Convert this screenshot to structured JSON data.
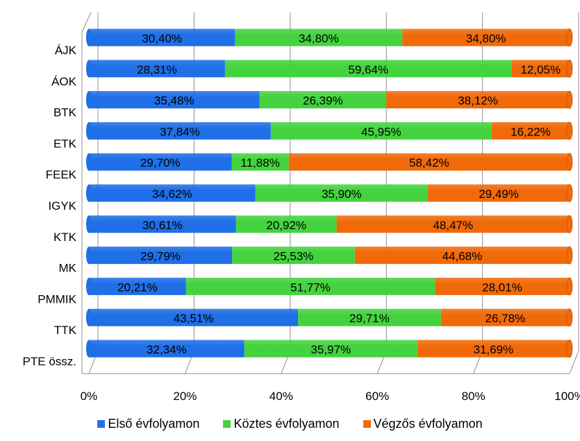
{
  "chart_data": {
    "type": "bar",
    "orientation": "horizontal",
    "stacked": "percent",
    "categories": [
      "ÁJK",
      "ÁOK",
      "BTK",
      "ETK",
      "FEEK",
      "IGYK",
      "KTK",
      "MK",
      "PMMIK",
      "TTK",
      "PTE össz."
    ],
    "series": [
      {
        "name": "Első évfolyamon",
        "color": "#1f6fe6",
        "values": [
          30.4,
          28.31,
          35.48,
          37.84,
          29.7,
          34.62,
          30.61,
          29.79,
          20.21,
          43.51,
          32.34
        ],
        "labels": [
          "30,40%",
          "28,31%",
          "35,48%",
          "37,84%",
          "29,70%",
          "34,62%",
          "30,61%",
          "29,79%",
          "20,21%",
          "43,51%",
          "32,34%"
        ]
      },
      {
        "name": "Köztes évfolyamon",
        "color": "#44d33f",
        "values": [
          34.8,
          59.64,
          26.39,
          45.95,
          11.88,
          35.9,
          20.92,
          25.53,
          51.77,
          29.71,
          35.97
        ],
        "labels": [
          "34,80%",
          "59,64%",
          "26,39%",
          "45,95%",
          "11,88%",
          "35,90%",
          "20,92%",
          "25,53%",
          "51,77%",
          "29,71%",
          "35,97%"
        ]
      },
      {
        "name": "Végzős évfolyamon",
        "color": "#f06a0a",
        "values": [
          34.8,
          12.05,
          38.12,
          16.22,
          58.42,
          29.49,
          48.47,
          44.68,
          28.01,
          26.78,
          31.69
        ],
        "labels": [
          "34,80%",
          "12,05%",
          "38,12%",
          "16,22%",
          "58,42%",
          "29,49%",
          "48,47%",
          "44,68%",
          "28,01%",
          "26,78%",
          "31,69%"
        ]
      }
    ],
    "xticks": [
      "0%",
      "20%",
      "40%",
      "60%",
      "80%",
      "100%"
    ],
    "xlim": [
      0,
      100
    ],
    "grid": true,
    "legend": "bottom",
    "style": "3d-cylinder"
  }
}
